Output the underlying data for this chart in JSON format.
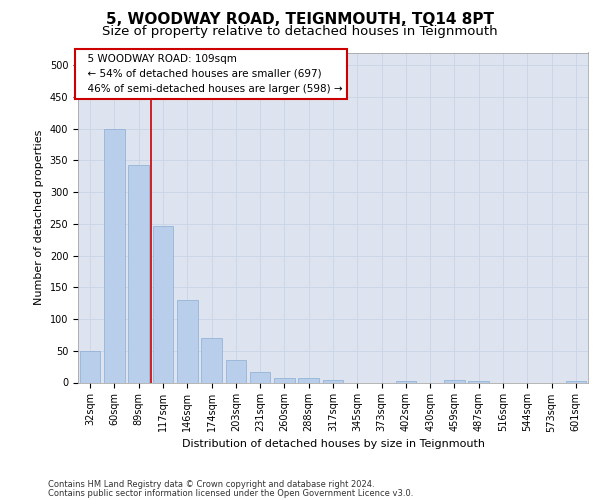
{
  "title": "5, WOODWAY ROAD, TEIGNMOUTH, TQ14 8PT",
  "subtitle": "Size of property relative to detached houses in Teignmouth",
  "xlabel": "Distribution of detached houses by size in Teignmouth",
  "ylabel": "Number of detached properties",
  "categories": [
    "32sqm",
    "60sqm",
    "89sqm",
    "117sqm",
    "146sqm",
    "174sqm",
    "203sqm",
    "231sqm",
    "260sqm",
    "288sqm",
    "317sqm",
    "345sqm",
    "373sqm",
    "402sqm",
    "430sqm",
    "459sqm",
    "487sqm",
    "516sqm",
    "544sqm",
    "573sqm",
    "601sqm"
  ],
  "bar_heights": [
    50,
    400,
    343,
    246,
    130,
    70,
    36,
    17,
    7,
    7,
    4,
    0,
    0,
    2,
    0,
    4,
    3,
    0,
    0,
    0,
    3
  ],
  "bar_color": "#b8ceea",
  "bar_edge_color": "#8aadd4",
  "red_line_x": 2.5,
  "annotation_line1": "  5 WOODWAY ROAD: 109sqm",
  "annotation_line2": "  ← 54% of detached houses are smaller (697)",
  "annotation_line3": "  46% of semi-detached houses are larger (598) →",
  "annotation_box_color": "#ffffff",
  "annotation_box_edge_color": "#cc0000",
  "ylim": [
    0,
    520
  ],
  "yticks": [
    0,
    50,
    100,
    150,
    200,
    250,
    300,
    350,
    400,
    450,
    500
  ],
  "grid_color": "#c8d4e8",
  "bg_color": "#dde4f0",
  "footer1": "Contains HM Land Registry data © Crown copyright and database right 2024.",
  "footer2": "Contains public sector information licensed under the Open Government Licence v3.0.",
  "title_fontsize": 11,
  "subtitle_fontsize": 9.5,
  "label_fontsize": 8,
  "tick_fontsize": 7,
  "annotation_fontsize": 7.5,
  "footer_fontsize": 6
}
